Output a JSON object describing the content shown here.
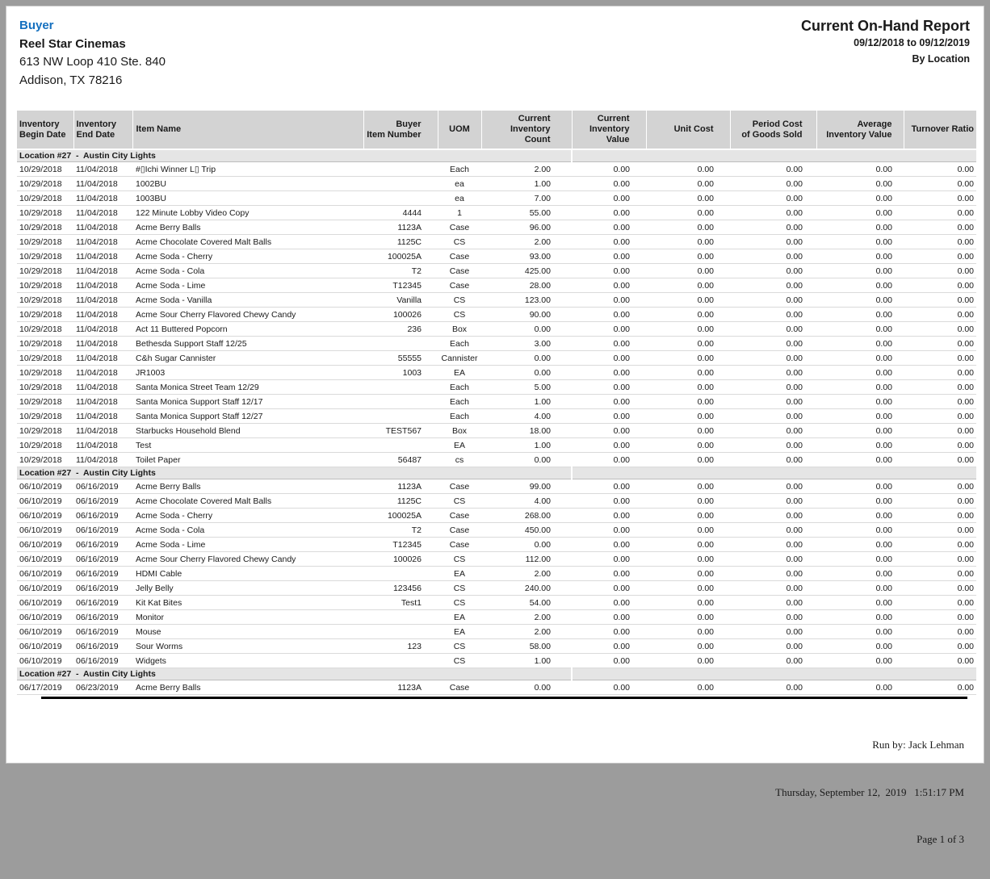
{
  "page": {
    "buyer_label": "Buyer",
    "company": "Reel Star Cinemas",
    "address_line1": "613 NW Loop 410 Ste. 840",
    "address_line2": "Addison, TX 78216",
    "report_title": "Current On-Hand Report",
    "date_range": "09/12/2018 to 09/12/2019",
    "grouping": "By Location"
  },
  "colors": {
    "accent_blue": "#1570BF",
    "table_header_bg": "#D3D3D3",
    "group_band_bg": "#E5E5E5"
  },
  "table": {
    "columns": [
      {
        "label": "Inventory\nBegin Date",
        "name": "col-inventory-begin-date"
      },
      {
        "label": "Inventory\nEnd Date",
        "name": "col-inventory-end-date"
      },
      {
        "label": "Item Name",
        "name": "col-item-name"
      },
      {
        "label": "Buyer\nItem Number",
        "name": "col-buyer-item-number"
      },
      {
        "label": "UOM",
        "name": "col-uom"
      },
      {
        "label": "Current\nInventory Count",
        "name": "col-current-inventory-count"
      },
      {
        "label": "Current\nInventory Value",
        "name": "col-current-inventory-value"
      },
      {
        "label": "Unit Cost",
        "name": "col-unit-cost"
      },
      {
        "label": "Period Cost\nof Goods Sold",
        "name": "col-period-cost-of-goods-sold"
      },
      {
        "label": "Average\nInventory Value",
        "name": "col-average-inventory-value"
      },
      {
        "label": "Turnover Ratio",
        "name": "col-turnover-ratio"
      }
    ]
  },
  "sections": [
    {
      "header": "Location #27  -  Austin City Lights",
      "begin_date": "10/29/2018",
      "end_date": "11/04/2018",
      "rows": [
        [
          "#▯Ichi Winner L▯ Trip",
          "",
          "Each",
          "2.00",
          "0.00",
          "0.00",
          "0.00",
          "0.00",
          "0.00"
        ],
        [
          "1002BU",
          "",
          "ea",
          "1.00",
          "0.00",
          "0.00",
          "0.00",
          "0.00",
          "0.00"
        ],
        [
          "1003BU",
          "",
          "ea",
          "7.00",
          "0.00",
          "0.00",
          "0.00",
          "0.00",
          "0.00"
        ],
        [
          "122 Minute Lobby Video Copy",
          "4444",
          "1",
          "55.00",
          "0.00",
          "0.00",
          "0.00",
          "0.00",
          "0.00"
        ],
        [
          "Acme Berry Balls",
          "1123A",
          "Case",
          "96.00",
          "0.00",
          "0.00",
          "0.00",
          "0.00",
          "0.00"
        ],
        [
          "Acme Chocolate Covered Malt Balls",
          "1125C",
          "CS",
          "2.00",
          "0.00",
          "0.00",
          "0.00",
          "0.00",
          "0.00"
        ],
        [
          "Acme Soda - Cherry",
          "100025A",
          "Case",
          "93.00",
          "0.00",
          "0.00",
          "0.00",
          "0.00",
          "0.00"
        ],
        [
          "Acme Soda - Cola",
          "T2",
          "Case",
          "425.00",
          "0.00",
          "0.00",
          "0.00",
          "0.00",
          "0.00"
        ],
        [
          "Acme Soda - Lime",
          "T12345",
          "Case",
          "28.00",
          "0.00",
          "0.00",
          "0.00",
          "0.00",
          "0.00"
        ],
        [
          "Acme Soda - Vanilla",
          "Vanilla",
          "CS",
          "123.00",
          "0.00",
          "0.00",
          "0.00",
          "0.00",
          "0.00"
        ],
        [
          "Acme Sour Cherry Flavored Chewy Candy",
          "100026",
          "CS",
          "90.00",
          "0.00",
          "0.00",
          "0.00",
          "0.00",
          "0.00"
        ],
        [
          "Act 11 Buttered Popcorn",
          "236",
          "Box",
          "0.00",
          "0.00",
          "0.00",
          "0.00",
          "0.00",
          "0.00"
        ],
        [
          "Bethesda Support Staff 12/25",
          "",
          "Each",
          "3.00",
          "0.00",
          "0.00",
          "0.00",
          "0.00",
          "0.00"
        ],
        [
          "C&h Sugar Cannister",
          "55555",
          "Cannister",
          "0.00",
          "0.00",
          "0.00",
          "0.00",
          "0.00",
          "0.00"
        ],
        [
          "JR1003",
          "1003",
          "EA",
          "0.00",
          "0.00",
          "0.00",
          "0.00",
          "0.00",
          "0.00"
        ],
        [
          "Santa Monica Street Team 12/29",
          "",
          "Each",
          "5.00",
          "0.00",
          "0.00",
          "0.00",
          "0.00",
          "0.00"
        ],
        [
          "Santa Monica Support Staff 12/17",
          "",
          "Each",
          "1.00",
          "0.00",
          "0.00",
          "0.00",
          "0.00",
          "0.00"
        ],
        [
          "Santa Monica Support Staff 12/27",
          "",
          "Each",
          "4.00",
          "0.00",
          "0.00",
          "0.00",
          "0.00",
          "0.00"
        ],
        [
          "Starbucks Household Blend",
          "TEST567",
          "Box",
          "18.00",
          "0.00",
          "0.00",
          "0.00",
          "0.00",
          "0.00"
        ],
        [
          "Test",
          "",
          "EA",
          "1.00",
          "0.00",
          "0.00",
          "0.00",
          "0.00",
          "0.00"
        ],
        [
          "Toilet Paper",
          "56487",
          "cs",
          "0.00",
          "0.00",
          "0.00",
          "0.00",
          "0.00",
          "0.00"
        ]
      ]
    },
    {
      "header": "Location #27  -  Austin City Lights",
      "begin_date": "06/10/2019",
      "end_date": "06/16/2019",
      "rows": [
        [
          "Acme Berry Balls",
          "1123A",
          "Case",
          "99.00",
          "0.00",
          "0.00",
          "0.00",
          "0.00",
          "0.00"
        ],
        [
          "Acme Chocolate Covered Malt Balls",
          "1125C",
          "CS",
          "4.00",
          "0.00",
          "0.00",
          "0.00",
          "0.00",
          "0.00"
        ],
        [
          "Acme Soda - Cherry",
          "100025A",
          "Case",
          "268.00",
          "0.00",
          "0.00",
          "0.00",
          "0.00",
          "0.00"
        ],
        [
          "Acme Soda - Cola",
          "T2",
          "Case",
          "450.00",
          "0.00",
          "0.00",
          "0.00",
          "0.00",
          "0.00"
        ],
        [
          "Acme Soda - Lime",
          "T12345",
          "Case",
          "0.00",
          "0.00",
          "0.00",
          "0.00",
          "0.00",
          "0.00"
        ],
        [
          "Acme Sour Cherry Flavored Chewy Candy",
          "100026",
          "CS",
          "112.00",
          "0.00",
          "0.00",
          "0.00",
          "0.00",
          "0.00"
        ],
        [
          "HDMI Cable",
          "",
          "EA",
          "2.00",
          "0.00",
          "0.00",
          "0.00",
          "0.00",
          "0.00"
        ],
        [
          "Jelly Belly",
          "123456",
          "CS",
          "240.00",
          "0.00",
          "0.00",
          "0.00",
          "0.00",
          "0.00"
        ],
        [
          "Kit Kat Bites",
          "Test1",
          "CS",
          "54.00",
          "0.00",
          "0.00",
          "0.00",
          "0.00",
          "0.00"
        ],
        [
          "Monitor",
          "",
          "EA",
          "2.00",
          "0.00",
          "0.00",
          "0.00",
          "0.00",
          "0.00"
        ],
        [
          "Mouse",
          "",
          "EA",
          "2.00",
          "0.00",
          "0.00",
          "0.00",
          "0.00",
          "0.00"
        ],
        [
          "Sour Worms",
          "123",
          "CS",
          "58.00",
          "0.00",
          "0.00",
          "0.00",
          "0.00",
          "0.00"
        ],
        [
          "Widgets",
          "",
          "CS",
          "1.00",
          "0.00",
          "0.00",
          "0.00",
          "0.00",
          "0.00"
        ]
      ]
    },
    {
      "header": "Location #27  -  Austin City Lights",
      "begin_date": "06/17/2019",
      "end_date": "06/23/2019",
      "rows": [
        [
          "Acme Berry Balls",
          "1123A",
          "Case",
          "0.00",
          "0.00",
          "0.00",
          "0.00",
          "0.00",
          "0.00"
        ]
      ]
    }
  ],
  "footer": {
    "run_by": "Run by: Jack Lehman",
    "datetime": "Thursday, September 12,  2019   1:51:17 PM",
    "page_label": "Page 1 of 3"
  }
}
